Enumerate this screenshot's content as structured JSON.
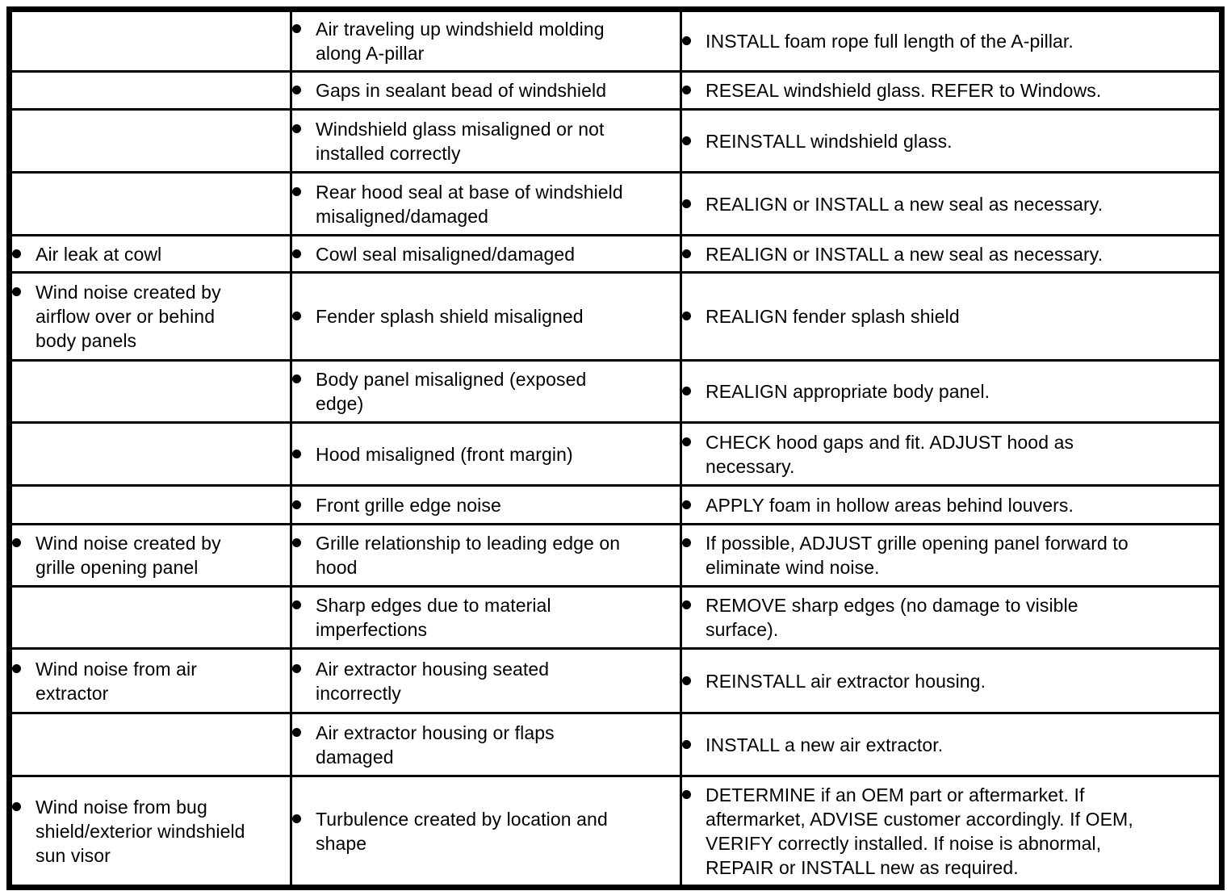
{
  "document": {
    "kind": "service-manual diagnostic table",
    "columns": [
      "condition",
      "possible_source",
      "action"
    ]
  },
  "colors": {
    "background": "#ffffff",
    "border": "#000000",
    "text": "#000000"
  },
  "table": {
    "rows": [
      {
        "condition": "",
        "source": "Air traveling up windshield molding\nalong A-pillar",
        "action": "INSTALL foam rope full length of the A-pillar."
      },
      {
        "condition": "",
        "source": "Gaps in sealant bead of windshield",
        "action": "RESEAL windshield glass. REFER to Windows."
      },
      {
        "condition": "",
        "source": "Windshield glass misaligned or not\ninstalled correctly",
        "action": "REINSTALL windshield glass."
      },
      {
        "condition": "",
        "source": "Rear hood seal at base of windshield\nmisaligned/damaged",
        "action": "REALIGN or INSTALL a new seal as necessary."
      },
      {
        "condition": "Air leak at cowl",
        "source": "Cowl seal misaligned/damaged",
        "action": "REALIGN or INSTALL a new seal as necessary."
      },
      {
        "condition": "Wind noise created by\nairflow over or behind\nbody panels",
        "source": "Fender splash shield misaligned",
        "action": "REALIGN fender splash shield"
      },
      {
        "condition": "",
        "source": "Body panel misaligned (exposed\nedge)",
        "action": "REALIGN appropriate body panel."
      },
      {
        "condition": "",
        "source": "Hood misaligned (front margin)",
        "action": "CHECK hood gaps and fit. ADJUST hood as\nnecessary."
      },
      {
        "condition": "",
        "source": "Front grille edge noise",
        "action": "APPLY foam in hollow areas behind louvers."
      },
      {
        "condition": "Wind noise created by\ngrille opening panel",
        "source": "Grille relationship to leading edge on\nhood",
        "action": "If possible, ADJUST grille opening panel forward to\neliminate wind noise."
      },
      {
        "condition": "",
        "source": "Sharp edges due to material\nimperfections",
        "action": "REMOVE sharp edges (no damage to visible\nsurface)."
      },
      {
        "condition": "Wind noise from air\nextractor",
        "source": "Air extractor housing seated\nincorrectly",
        "action": "REINSTALL air extractor housing."
      },
      {
        "condition": "",
        "source": "Air extractor housing or flaps\ndamaged",
        "action": "INSTALL a new air extractor."
      },
      {
        "condition": "Wind noise from bug\nshield/exterior windshield\nsun visor",
        "source": "Turbulence created by location and\nshape",
        "action": "DETERMINE if an OEM part or aftermarket. If\naftermarket, ADVISE customer accordingly. If OEM,\nVERIFY correctly installed. If noise is abnormal,\nREPAIR or INSTALL new as required."
      }
    ]
  }
}
